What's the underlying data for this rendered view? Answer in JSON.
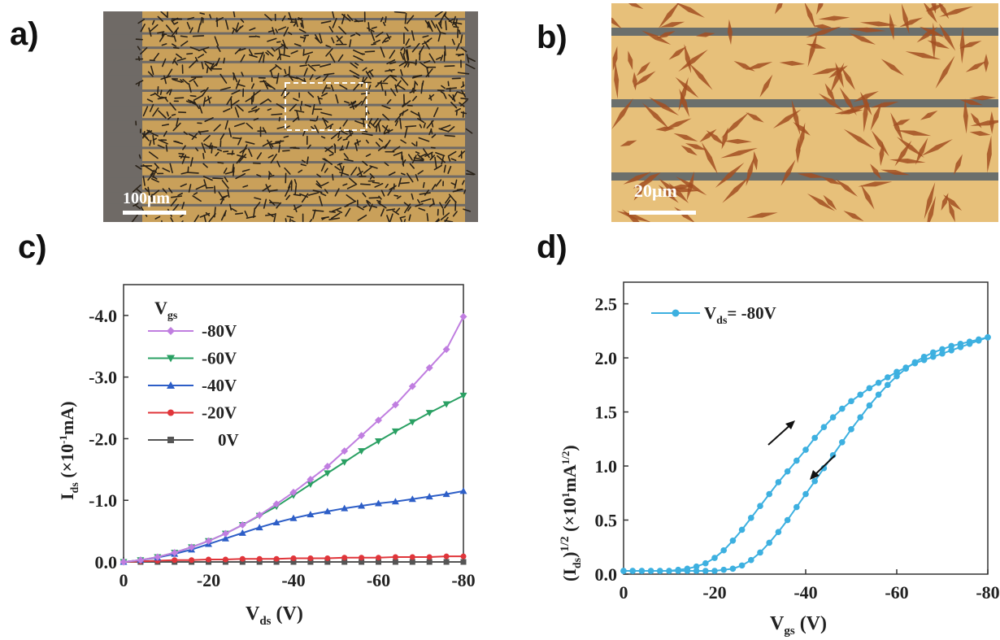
{
  "panels": {
    "a": "a)",
    "b": "b)",
    "c": "c)",
    "d": "d)"
  },
  "micrographs": {
    "a": {
      "scale_bar": "100μm",
      "substrate_color": "#c9a05a",
      "electrode_color": "#6f6a66",
      "crystal_color": "#2a2218"
    },
    "b": {
      "scale_bar": "20μm",
      "substrate_color": "#e7c07a",
      "electrode_color": "#55606a",
      "crystal_color": "#a24f22"
    }
  },
  "chart_data": [
    {
      "id": "c",
      "type": "line",
      "xlabel_main": "V",
      "xlabel_sub": "ds",
      "xlabel_unit": " (V)",
      "ylabel_main": "I",
      "ylabel_sub": "ds",
      "ylabel_unit": " (×10",
      "ylabel_sup": "-1",
      "ylabel_unit2": "mA)",
      "xlim": [
        0,
        -80
      ],
      "ylim": [
        0,
        -4.5
      ],
      "xticks": [
        0,
        -20,
        -40,
        -60,
        -80
      ],
      "xtick_labels": [
        "0",
        "-20",
        "-40",
        "-60",
        "-80"
      ],
      "yticks": [
        0,
        -1,
        -2,
        -3,
        -4
      ],
      "ytick_labels": [
        "0.0",
        "-1.0",
        "-2.0",
        "-3.0",
        "-4.0"
      ],
      "legend_title_main": "V",
      "legend_title_sub": "gs",
      "legend_position": "top-left",
      "x": [
        0,
        -4,
        -8,
        -12,
        -16,
        -20,
        -24,
        -28,
        -32,
        -36,
        -40,
        -44,
        -48,
        -52,
        -56,
        -60,
        -64,
        -68,
        -72,
        -76,
        -80
      ],
      "series": [
        {
          "name": "-80V",
          "color": "#c07ee0",
          "marker": "diamond",
          "values": [
            0,
            -0.03,
            -0.08,
            -0.15,
            -0.24,
            -0.34,
            -0.46,
            -0.6,
            -0.76,
            -0.94,
            -1.13,
            -1.34,
            -1.55,
            -1.8,
            -2.05,
            -2.3,
            -2.55,
            -2.85,
            -3.15,
            -3.45,
            -3.98
          ]
        },
        {
          "name": "-60V",
          "color": "#2aa063",
          "marker": "triangle-down",
          "values": [
            0,
            -0.03,
            -0.08,
            -0.15,
            -0.24,
            -0.34,
            -0.46,
            -0.6,
            -0.75,
            -0.9,
            -1.08,
            -1.26,
            -1.44,
            -1.62,
            -1.8,
            -1.96,
            -2.12,
            -2.27,
            -2.42,
            -2.56,
            -2.7
          ]
        },
        {
          "name": "-40V",
          "color": "#2d5ec7",
          "marker": "triangle-up",
          "values": [
            0,
            -0.03,
            -0.07,
            -0.13,
            -0.2,
            -0.29,
            -0.38,
            -0.47,
            -0.56,
            -0.64,
            -0.71,
            -0.77,
            -0.82,
            -0.87,
            -0.91,
            -0.95,
            -0.98,
            -1.02,
            -1.06,
            -1.1,
            -1.15
          ]
        },
        {
          "name": "-20V",
          "color": "#e0353a",
          "marker": "circle",
          "values": [
            0,
            -0.01,
            -0.02,
            -0.03,
            -0.03,
            -0.04,
            -0.04,
            -0.05,
            -0.05,
            -0.05,
            -0.06,
            -0.06,
            -0.06,
            -0.07,
            -0.07,
            -0.07,
            -0.08,
            -0.08,
            -0.08,
            -0.09,
            -0.09
          ]
        },
        {
          "name": "0V",
          "color": "#555555",
          "marker": "square",
          "values": [
            0,
            0,
            0,
            0,
            0,
            0,
            0,
            0,
            0,
            0,
            0,
            0,
            0,
            0,
            0,
            0,
            0,
            0,
            0,
            0,
            0
          ]
        }
      ]
    },
    {
      "id": "d",
      "type": "line",
      "xlabel_main": "V",
      "xlabel_sub": "gs",
      "xlabel_unit": " (V)",
      "ylabel_main": "(I",
      "ylabel_sub": "ds",
      "ylabel_close": ")",
      "ylabel_sup": "1/2",
      "ylabel_unit": " (×10",
      "ylabel_sup2": "1",
      "ylabel_unit2": "mA",
      "ylabel_sup3": "1/2",
      "ylabel_end": ")",
      "xlim": [
        0,
        -80
      ],
      "ylim": [
        0,
        2.7
      ],
      "xticks": [
        0,
        -20,
        -40,
        -60,
        -80
      ],
      "xtick_labels": [
        "0",
        "-20",
        "-40",
        "-60",
        "-80"
      ],
      "yticks": [
        0,
        0.5,
        1.0,
        1.5,
        2.0,
        2.5
      ],
      "ytick_labels": [
        "0.0",
        "0.5",
        "1.0",
        "1.5",
        "2.0",
        "2.5"
      ],
      "legend_position": "top-left",
      "series": [
        {
          "name": "V",
          "name_sub": "ds",
          "name_rest": "= -80V",
          "color": "#3db0e0",
          "marker": "circle",
          "x": [
            0,
            -2,
            -4,
            -6,
            -8,
            -10,
            -12,
            -14,
            -16,
            -18,
            -20,
            -22,
            -24,
            -26,
            -28,
            -30,
            -32,
            -34,
            -36,
            -38,
            -40,
            -42,
            -44,
            -46,
            -48,
            -50,
            -52,
            -54,
            -56,
            -58,
            -60,
            -62,
            -64,
            -66,
            -68,
            -70,
            -72,
            -74,
            -76,
            -78,
            -80
          ],
          "values": [
            0.03,
            0.03,
            0.03,
            0.03,
            0.03,
            0.03,
            0.04,
            0.05,
            0.07,
            0.1,
            0.15,
            0.22,
            0.31,
            0.41,
            0.52,
            0.63,
            0.74,
            0.85,
            0.95,
            1.05,
            1.15,
            1.26,
            1.36,
            1.45,
            1.53,
            1.6,
            1.66,
            1.72,
            1.77,
            1.82,
            1.87,
            1.91,
            1.95,
            1.98,
            2.01,
            2.04,
            2.07,
            2.1,
            2.13,
            2.16,
            2.19
          ]
        },
        {
          "name": "return",
          "color": "#3db0e0",
          "marker": "circle",
          "legend": false,
          "x": [
            -80,
            -78,
            -76,
            -74,
            -72,
            -70,
            -68,
            -66,
            -64,
            -62,
            -60,
            -58,
            -56,
            -54,
            -52,
            -50,
            -48,
            -46,
            -44,
            -42,
            -40,
            -38,
            -36,
            -34,
            -32,
            -30,
            -28,
            -26,
            -24,
            -22,
            -20,
            -18,
            -16,
            -14,
            -12,
            -10,
            -8,
            -6,
            -4,
            -2,
            0
          ],
          "values": [
            2.19,
            2.17,
            2.15,
            2.13,
            2.11,
            2.08,
            2.05,
            2.01,
            1.96,
            1.9,
            1.83,
            1.75,
            1.66,
            1.56,
            1.45,
            1.34,
            1.22,
            1.1,
            0.98,
            0.86,
            0.74,
            0.62,
            0.5,
            0.39,
            0.29,
            0.2,
            0.13,
            0.08,
            0.05,
            0.04,
            0.03,
            0.03,
            0.03,
            0.03,
            0.03,
            0.03,
            0.03,
            0.03,
            0.03,
            0.03,
            0.03
          ]
        }
      ]
    }
  ]
}
